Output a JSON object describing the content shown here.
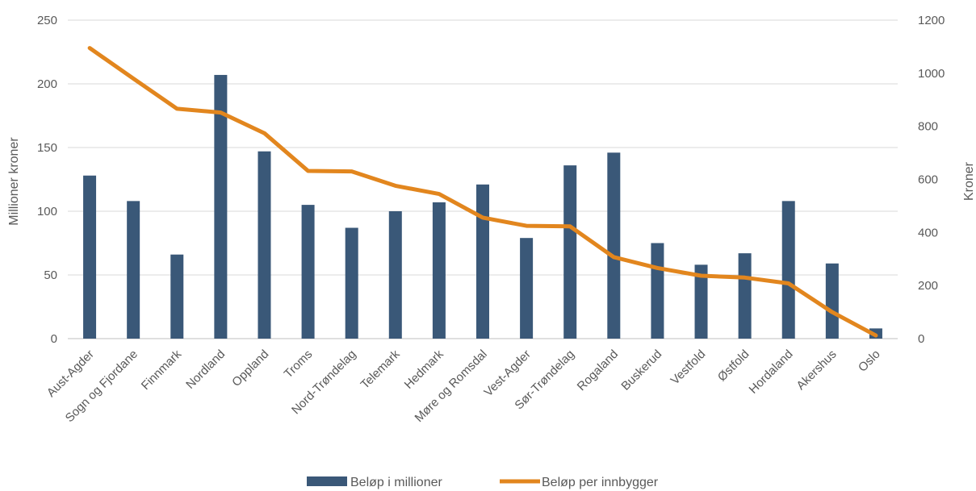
{
  "chart_data": {
    "type": "bar",
    "categories": [
      "Aust-Agder",
      "Sogn og Fjordane",
      "Finnmark",
      "Nordland",
      "Oppland",
      "Troms",
      "Nord-Trøndelag",
      "Telemark",
      "Hedmark",
      "Møre og Romsdal",
      "Vest-Agder",
      "Sør-Trøndelag",
      "Rogaland",
      "Buskerud",
      "Vestfold",
      "Østfold",
      "Hordaland",
      "Akershus",
      "Oslo"
    ],
    "series": [
      {
        "name": "Beløp i millioner",
        "type": "bar",
        "axis": "left",
        "color": "#3A5878",
        "values": [
          128,
          108,
          66,
          207,
          147,
          105,
          87,
          100,
          107,
          121,
          79,
          136,
          146,
          75,
          58,
          67,
          108,
          59,
          8
        ]
      },
      {
        "name": "Beløp per innbygger",
        "type": "line",
        "axis": "right",
        "color": "#E2861E",
        "values": [
          1095,
          980,
          866,
          852,
          774,
          632,
          630,
          576,
          545,
          456,
          425,
          423,
          307,
          266,
          237,
          230,
          208,
          100,
          12
        ]
      }
    ],
    "ylabel": "Millioner kroner",
    "ylim": [
      0,
      250
    ],
    "yticks": [
      0,
      50,
      100,
      150,
      200,
      250
    ],
    "y2label": "Kroner",
    "y2lim": [
      0,
      1200
    ],
    "y2ticks": [
      0,
      200,
      400,
      600,
      800,
      1000,
      1200
    ],
    "grid": true,
    "legend": "bottom-center"
  }
}
